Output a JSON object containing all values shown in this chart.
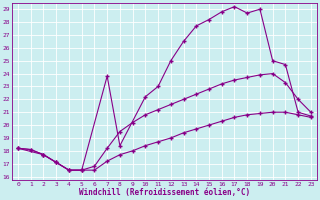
{
  "xlabel": "Windchill (Refroidissement éolien,°C)",
  "xlim": [
    -0.5,
    23.5
  ],
  "ylim": [
    15.7,
    29.5
  ],
  "xticks": [
    0,
    1,
    2,
    3,
    4,
    5,
    6,
    7,
    8,
    9,
    10,
    11,
    12,
    13,
    14,
    15,
    16,
    17,
    18,
    19,
    20,
    21,
    22,
    23
  ],
  "yticks": [
    16,
    17,
    18,
    19,
    20,
    21,
    22,
    23,
    24,
    25,
    26,
    27,
    28,
    29
  ],
  "bg_color": "#cceef0",
  "line_color": "#880088",
  "grid_color": "#ffffff",
  "line1_x": [
    0,
    1,
    2,
    3,
    4,
    5,
    6,
    7,
    8,
    9,
    10,
    11,
    12,
    13,
    14,
    15,
    16,
    17,
    18,
    19,
    20,
    21,
    22,
    23
  ],
  "line1_y": [
    18.2,
    18.1,
    17.7,
    17.1,
    16.5,
    16.5,
    16.5,
    17.2,
    17.7,
    18.0,
    18.4,
    18.7,
    19.0,
    19.4,
    19.7,
    20.0,
    20.3,
    20.6,
    20.8,
    20.9,
    21.0,
    21.0,
    20.8,
    20.6
  ],
  "line1_markers_x": [
    0,
    1,
    2,
    3,
    4,
    5,
    23
  ],
  "line1_markers_y": [
    18.2,
    18.1,
    17.7,
    17.1,
    16.5,
    16.5,
    20.6
  ],
  "line2_x": [
    0,
    1,
    2,
    3,
    4,
    5,
    6,
    7,
    8,
    9,
    10,
    11,
    12,
    13,
    14,
    15,
    16,
    17,
    18,
    19,
    20,
    21,
    22,
    23
  ],
  "line2_y": [
    18.2,
    18.1,
    17.7,
    17.1,
    16.5,
    16.5,
    16.8,
    18.2,
    19.5,
    20.2,
    20.8,
    21.2,
    21.6,
    22.0,
    22.4,
    22.8,
    23.2,
    23.5,
    23.7,
    23.9,
    24.0,
    23.3,
    22.0,
    21.0
  ],
  "line2_markers_x": [
    0,
    2,
    3,
    4,
    5,
    7,
    9,
    11,
    13,
    15,
    17,
    19,
    20,
    21,
    22,
    23
  ],
  "line2_markers_y": [
    18.2,
    17.7,
    17.1,
    16.5,
    16.5,
    18.2,
    20.2,
    21.2,
    22.0,
    22.8,
    23.5,
    23.9,
    24.0,
    23.3,
    22.0,
    21.0
  ],
  "line3_x": [
    0,
    2,
    3,
    4,
    5,
    7,
    8,
    10,
    11,
    12,
    13,
    14,
    15,
    16,
    17,
    18,
    19,
    20,
    21,
    22,
    23
  ],
  "line3_y": [
    18.2,
    17.7,
    17.1,
    16.5,
    16.5,
    23.8,
    18.4,
    22.2,
    23.0,
    25.0,
    26.5,
    27.7,
    28.2,
    28.8,
    29.2,
    28.7,
    29.0,
    25.0,
    24.7,
    21.0,
    20.7
  ],
  "line3_markers_x": [
    0,
    2,
    3,
    4,
    5,
    7,
    8,
    10,
    11,
    12,
    13,
    14,
    15,
    16,
    17,
    18,
    19,
    20,
    21,
    22,
    23
  ],
  "line3_markers_y": [
    18.2,
    17.7,
    17.1,
    16.5,
    16.5,
    23.8,
    18.4,
    22.2,
    23.0,
    25.0,
    26.5,
    27.7,
    28.2,
    28.8,
    29.2,
    28.7,
    29.0,
    25.0,
    24.7,
    21.0,
    20.7
  ]
}
